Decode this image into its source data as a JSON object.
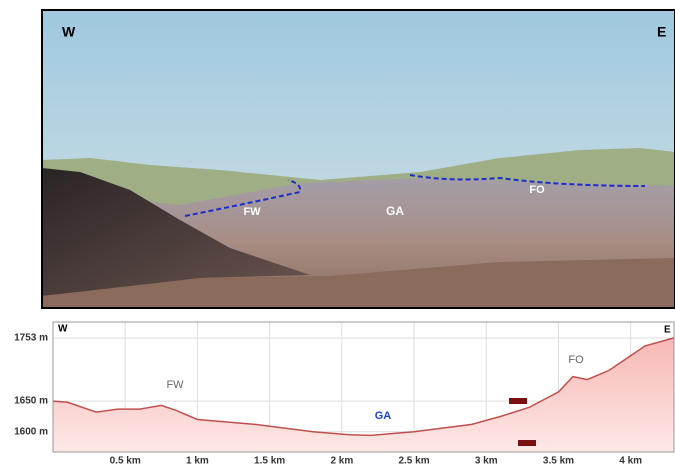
{
  "photo": {
    "labels": {
      "west": "W",
      "east": "E",
      "fw": "FW",
      "ga": "GA",
      "fo": "FO"
    }
  },
  "chart_data": {
    "type": "area",
    "series_name": null,
    "annotations": {
      "west": "W",
      "east": "E",
      "fw": "FW",
      "ga": "GA",
      "fo": "FO"
    },
    "x": [
      0,
      0.1,
      0.3,
      0.45,
      0.6,
      0.75,
      0.85,
      1.0,
      1.4,
      1.8,
      2.05,
      2.2,
      2.5,
      2.9,
      3.1,
      3.3,
      3.5,
      3.6,
      3.7,
      3.85,
      4.1,
      4.3
    ],
    "values": [
      1650,
      1648,
      1632,
      1637,
      1637,
      1643,
      1635,
      1620,
      1612,
      1600,
      1595,
      1594,
      1600,
      1612,
      1625,
      1640,
      1665,
      1690,
      1685,
      1700,
      1740,
      1753
    ],
    "color": "#c0504d",
    "xlim": [
      0,
      4.3
    ],
    "xticks": [
      {
        "value": 0.5,
        "label": "0.5 km"
      },
      {
        "value": 1,
        "label": "1 km"
      },
      {
        "value": 1.5,
        "label": "1.5 km"
      },
      {
        "value": 2,
        "label": "2 km"
      },
      {
        "value": 2.5,
        "label": "2.5 km"
      },
      {
        "value": 3,
        "label": "3 km"
      },
      {
        "value": 3.5,
        "label": "3.5 km"
      },
      {
        "value": 4,
        "label": "4 km"
      }
    ],
    "ylim": [
      1567,
      1779
    ],
    "yticks": [
      {
        "value": 1600,
        "label": "1600 m"
      },
      {
        "value": 1650,
        "label": "1650 m"
      },
      {
        "value": 1753,
        "label": "1753 m"
      }
    ],
    "grid": true
  }
}
